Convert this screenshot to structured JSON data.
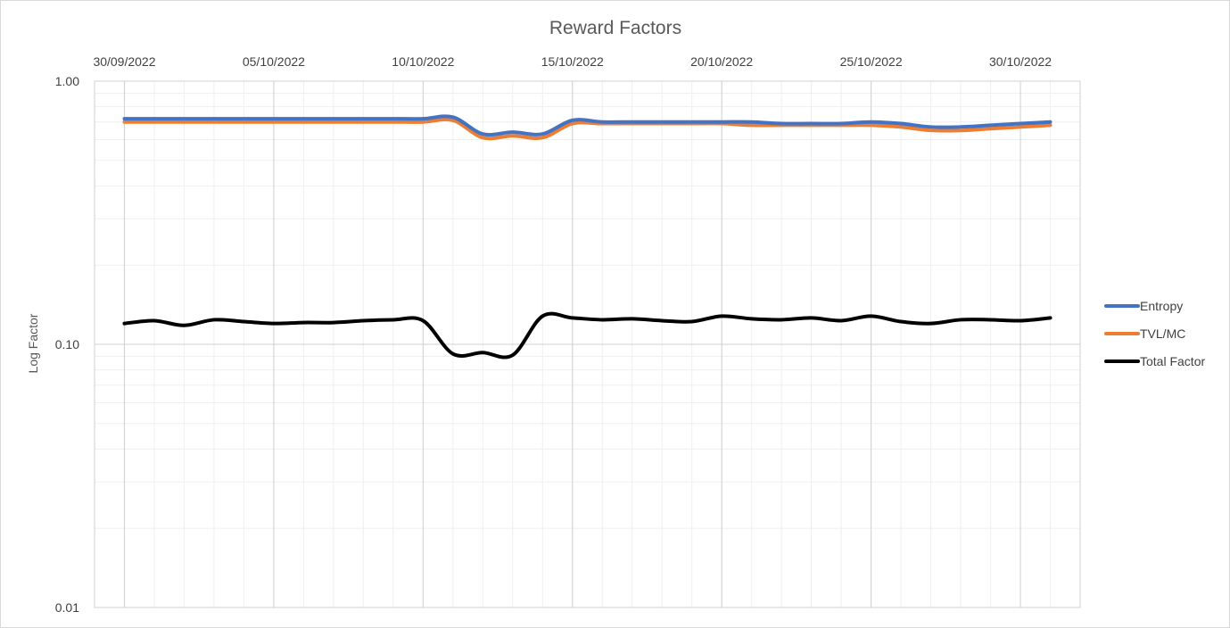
{
  "chart_data": {
    "type": "line",
    "title": "Reward Factors",
    "xlabel": "",
    "ylabel": "Log Factor",
    "yscale": "log",
    "ylim": [
      0.01,
      1.0
    ],
    "y_ticks": [
      "0.01",
      "0.10",
      "1.00"
    ],
    "x_axis_position": "top",
    "x_ticks": [
      "30/09/2022",
      "05/10/2022",
      "10/10/2022",
      "15/10/2022",
      "20/10/2022",
      "25/10/2022",
      "30/10/2022"
    ],
    "xlim": [
      "2022-09-29",
      "2022-11-01"
    ],
    "grid": true,
    "legend_position": "right",
    "x": [
      "2022-09-30",
      "2022-10-01",
      "2022-10-02",
      "2022-10-03",
      "2022-10-04",
      "2022-10-05",
      "2022-10-06",
      "2022-10-07",
      "2022-10-08",
      "2022-10-09",
      "2022-10-10",
      "2022-10-11",
      "2022-10-12",
      "2022-10-13",
      "2022-10-14",
      "2022-10-15",
      "2022-10-16",
      "2022-10-17",
      "2022-10-18",
      "2022-10-19",
      "2022-10-20",
      "2022-10-21",
      "2022-10-22",
      "2022-10-23",
      "2022-10-24",
      "2022-10-25",
      "2022-10-26",
      "2022-10-27",
      "2022-10-28",
      "2022-10-29",
      "2022-10-30",
      "2022-10-31"
    ],
    "series": [
      {
        "name": "Entropy",
        "color": "#4472c4",
        "values": [
          0.72,
          0.72,
          0.72,
          0.72,
          0.72,
          0.72,
          0.72,
          0.72,
          0.72,
          0.72,
          0.72,
          0.73,
          0.63,
          0.64,
          0.63,
          0.71,
          0.7,
          0.7,
          0.7,
          0.7,
          0.7,
          0.7,
          0.69,
          0.69,
          0.69,
          0.7,
          0.69,
          0.67,
          0.67,
          0.68,
          0.69,
          0.7
        ]
      },
      {
        "name": "TVL/MC",
        "color": "#ed7d31",
        "values": [
          0.7,
          0.7,
          0.7,
          0.7,
          0.7,
          0.7,
          0.7,
          0.7,
          0.7,
          0.7,
          0.7,
          0.71,
          0.61,
          0.62,
          0.61,
          0.69,
          0.69,
          0.69,
          0.69,
          0.69,
          0.69,
          0.68,
          0.68,
          0.68,
          0.68,
          0.68,
          0.67,
          0.65,
          0.65,
          0.66,
          0.67,
          0.68
        ]
      },
      {
        "name": "Total Factor",
        "color": "#000000",
        "values": [
          0.12,
          0.123,
          0.118,
          0.124,
          0.122,
          0.12,
          0.121,
          0.121,
          0.123,
          0.124,
          0.123,
          0.092,
          0.093,
          0.091,
          0.128,
          0.126,
          0.124,
          0.125,
          0.123,
          0.122,
          0.128,
          0.125,
          0.124,
          0.126,
          0.123,
          0.128,
          0.122,
          0.12,
          0.124,
          0.124,
          0.123,
          0.126
        ]
      }
    ]
  }
}
